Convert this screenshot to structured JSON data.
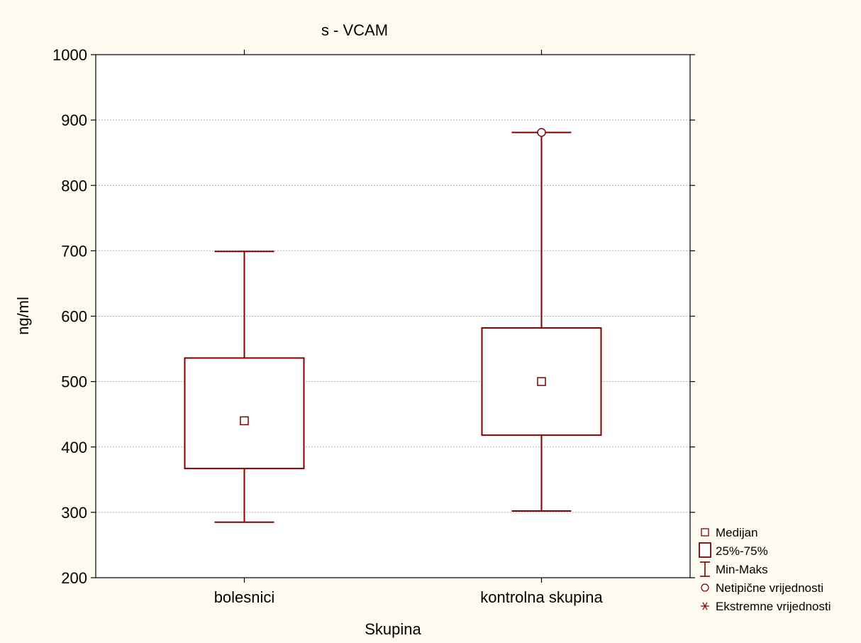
{
  "chart_data": {
    "type": "boxplot",
    "title": "s - VCAM",
    "xlabel": "Skupina",
    "ylabel": "ng/ml",
    "ylim": [
      200,
      1000
    ],
    "yticks": [
      200,
      300,
      400,
      500,
      600,
      700,
      800,
      900,
      1000
    ],
    "grid": true,
    "legend_position": "bottom-right outside",
    "categories": [
      "bolesnici",
      "kontrolna skupina"
    ],
    "boxes": [
      {
        "category": "bolesnici",
        "min": 285,
        "q1": 367,
        "median": 440,
        "q3": 536,
        "max": 699,
        "outliers": []
      },
      {
        "category": "kontrolna skupina",
        "min": 302,
        "q1": 418,
        "median": 500,
        "q3": 582,
        "max": 881,
        "outliers": [
          881
        ]
      }
    ],
    "legend": [
      {
        "label": "Medijan",
        "symbol": "small-square"
      },
      {
        "label": "25%-75%",
        "symbol": "box"
      },
      {
        "label": "Min-Maks",
        "symbol": "whisker"
      },
      {
        "label": "Netipične vrijednosti",
        "symbol": "circle"
      },
      {
        "label": "Ekstremne vrijednosti",
        "symbol": "asterisk"
      }
    ],
    "colors": {
      "box": "#800000",
      "background": "#fdfaf0",
      "plot_background": "#ffffff",
      "grid": "#b0b0b0",
      "axis": "#000000"
    }
  }
}
